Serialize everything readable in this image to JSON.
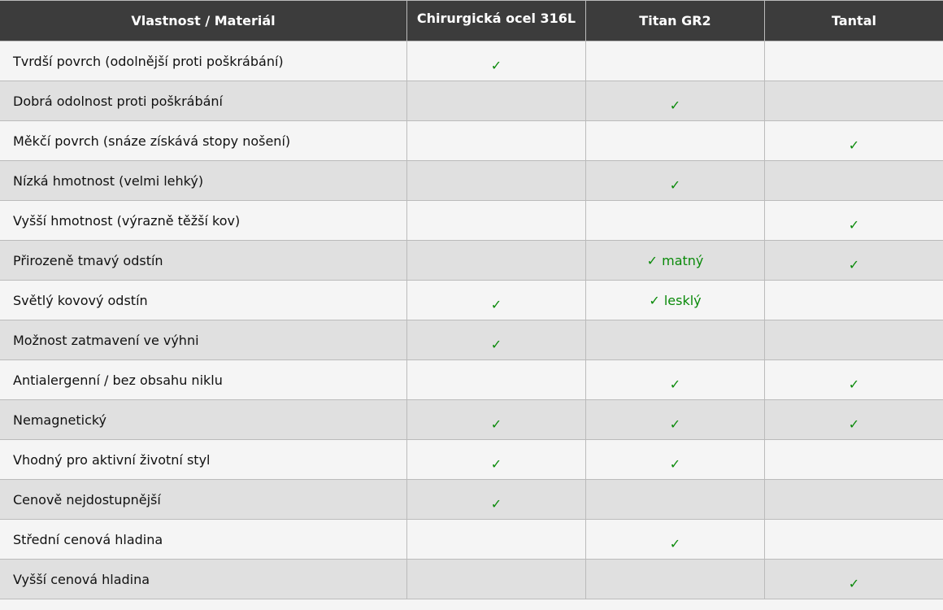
{
  "colors": {
    "header_bg": "#3c3c3c",
    "check": "#0a8a0a",
    "row_light": "#f5f5f5",
    "row_dark": "#e0e0e0"
  },
  "headers": [
    "Vlastnost / Materiál",
    "Chirurgická ocel 316L",
    "Titan GR2",
    "Tantal"
  ],
  "rows": [
    {
      "label": "Tvrdší povrch (odolnější proti poškrábání)",
      "values": [
        "✓",
        "",
        ""
      ]
    },
    {
      "label": "Dobrá odolnost proti poškrábání",
      "values": [
        "",
        "✓",
        ""
      ]
    },
    {
      "label": "Měkčí povrch (snáze získává stopy nošení)",
      "values": [
        "",
        "",
        "✓"
      ]
    },
    {
      "label": "Nízká hmotnost (velmi lehký)",
      "values": [
        "",
        "✓",
        ""
      ]
    },
    {
      "label": "Vyšší hmotnost (výrazně těžší kov)",
      "values": [
        "",
        "",
        "✓"
      ]
    },
    {
      "label": "Přirozeně tmavý odstín",
      "values": [
        "",
        "✓ matný",
        "✓"
      ]
    },
    {
      "label": "Světlý kovový odstín",
      "values": [
        "✓",
        "✓ lesklý",
        ""
      ]
    },
    {
      "label": "Možnost zatmavení ve výhni",
      "values": [
        "✓",
        "",
        ""
      ]
    },
    {
      "label": "Antialergenní / bez obsahu niklu",
      "values": [
        "",
        "✓",
        "✓"
      ]
    },
    {
      "label": "Nemagnetický",
      "values": [
        "✓",
        "✓",
        "✓"
      ]
    },
    {
      "label": "Vhodný pro aktivní životní styl",
      "values": [
        "✓",
        "✓",
        ""
      ]
    },
    {
      "label": "Cenově nejdostupnější",
      "values": [
        "✓",
        "",
        ""
      ]
    },
    {
      "label": "Střední cenová hladina",
      "values": [
        "",
        "✓",
        ""
      ]
    },
    {
      "label": "Vyšší cenová hladina",
      "values": [
        "",
        "",
        "✓"
      ]
    }
  ]
}
